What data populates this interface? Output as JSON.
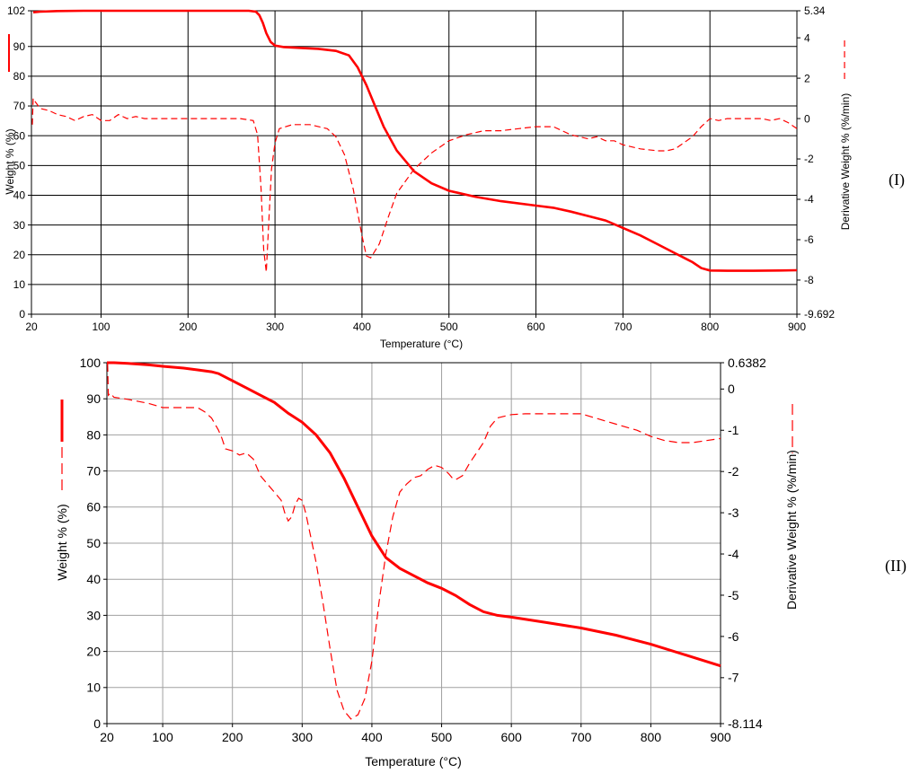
{
  "colors": {
    "curve": "#ff0000",
    "grid_top": "#000000",
    "grid_bottom": "#a0a0a0",
    "axis": "#000000"
  },
  "chart_data": [
    {
      "id": "I",
      "panel_label": "(I)",
      "type": "line",
      "xlabel": "Temperature (°C)",
      "ylabel": "Weight % (%)",
      "y2label": "Derivative Weight % (%/min)",
      "xlim": [
        20,
        900
      ],
      "ylim": [
        0,
        102
      ],
      "y2lim": [
        -9.692,
        5.34
      ],
      "x_ticks": [
        "20",
        "100",
        "200",
        "300",
        "400",
        "500",
        "600",
        "700",
        "800",
        "900"
      ],
      "y_ticks": [
        "0",
        "10",
        "20",
        "30",
        "40",
        "50",
        "60",
        "70",
        "80",
        "90",
        "102"
      ],
      "y2_ticks": [
        "-9.692",
        "-8",
        "-6",
        "-4",
        "-2",
        "0",
        "2",
        "4",
        "5.34"
      ],
      "series": [
        {
          "role": "weight",
          "axis": "left",
          "style": "solid",
          "x": [
            22,
            30,
            50,
            80,
            100,
            150,
            200,
            250,
            270,
            278,
            282,
            286,
            290,
            295,
            300,
            310,
            330,
            350,
            370,
            385,
            395,
            405,
            415,
            425,
            440,
            460,
            480,
            500,
            530,
            560,
            600,
            620,
            640,
            660,
            680,
            700,
            720,
            740,
            760,
            780,
            790,
            800,
            820,
            850,
            880,
            900
          ],
          "y": [
            101.5,
            101.7,
            101.9,
            102,
            102,
            102,
            102,
            102,
            102,
            101.7,
            100.5,
            98,
            94.5,
            91.5,
            90.3,
            89.8,
            89.5,
            89.2,
            88.5,
            87,
            83,
            77,
            70,
            63,
            55,
            48,
            44,
            41.5,
            39.5,
            38,
            36.5,
            35.8,
            34.5,
            33,
            31.5,
            29,
            26.5,
            23.5,
            20.5,
            17.5,
            15.5,
            14.7,
            14.6,
            14.6,
            14.7,
            14.8
          ]
        },
        {
          "role": "derivative",
          "axis": "right",
          "style": "dashed",
          "x": [
            21,
            22,
            25,
            30,
            40,
            50,
            60,
            70,
            80,
            90,
            100,
            110,
            120,
            130,
            140,
            150,
            200,
            260,
            275,
            280,
            284,
            287,
            290,
            293,
            296,
            300,
            305,
            320,
            340,
            360,
            370,
            380,
            390,
            400,
            405,
            410,
            420,
            430,
            440,
            460,
            480,
            500,
            520,
            540,
            560,
            580,
            600,
            620,
            640,
            660,
            670,
            680,
            690,
            700,
            720,
            740,
            750,
            760,
            770,
            780,
            790,
            800,
            810,
            820,
            840,
            860,
            870,
            880,
            890,
            900
          ],
          "y": [
            -0.3,
            1,
            0.8,
            0.5,
            0.4,
            0.2,
            0.1,
            -0.1,
            0.1,
            0.2,
            -0.1,
            -0.1,
            0.2,
            0,
            0.1,
            0,
            0,
            0,
            -0.1,
            -0.8,
            -3.5,
            -6.5,
            -7.6,
            -5,
            -2.5,
            -1.2,
            -0.5,
            -0.3,
            -0.3,
            -0.5,
            -0.9,
            -1.8,
            -3.5,
            -5.8,
            -6.8,
            -6.9,
            -6.2,
            -4.9,
            -3.7,
            -2.5,
            -1.7,
            -1.1,
            -0.8,
            -0.6,
            -0.6,
            -0.5,
            -0.4,
            -0.4,
            -0.8,
            -1,
            -0.9,
            -1.1,
            -1.1,
            -1.3,
            -1.5,
            -1.6,
            -1.6,
            -1.5,
            -1.2,
            -0.9,
            -0.4,
            0,
            -0.1,
            0,
            0,
            0,
            -0.1,
            0,
            -0.2,
            -0.5
          ]
        }
      ]
    },
    {
      "id": "II",
      "panel_label": "(II)",
      "type": "line",
      "xlabel": "Temperature (°C)",
      "ylabel": "Weight % (%)",
      "y2label": "Derivative Weight % (%/min)",
      "xlim": [
        20,
        900
      ],
      "ylim": [
        0,
        100
      ],
      "y2lim": [
        -8.114,
        0.6382
      ],
      "x_ticks": [
        "20",
        "100",
        "200",
        "300",
        "400",
        "500",
        "600",
        "700",
        "800",
        "900"
      ],
      "y_ticks": [
        "0",
        "10",
        "20",
        "30",
        "40",
        "50",
        "60",
        "70",
        "80",
        "90",
        "100"
      ],
      "y2_ticks": [
        "-8.114",
        "-7",
        "-6",
        "-5",
        "-4",
        "-3",
        "-2",
        "-1",
        "0",
        "0.6382"
      ],
      "series": [
        {
          "role": "weight",
          "axis": "left",
          "style": "solid",
          "x": [
            20,
            30,
            50,
            80,
            100,
            130,
            150,
            170,
            180,
            190,
            200,
            220,
            240,
            260,
            280,
            300,
            320,
            340,
            360,
            380,
            400,
            420,
            440,
            460,
            480,
            500,
            520,
            540,
            560,
            580,
            600,
            650,
            700,
            750,
            800,
            850,
            900
          ],
          "y": [
            100,
            100,
            99.8,
            99.4,
            99,
            98.5,
            98,
            97.5,
            97,
            96,
            95,
            93,
            91,
            89,
            86,
            83.5,
            80,
            75,
            68,
            60,
            52,
            46,
            43,
            41,
            39,
            37.5,
            35.5,
            33,
            31,
            30,
            29.5,
            28,
            26.5,
            24.5,
            22,
            19,
            16
          ]
        },
        {
          "role": "derivative",
          "axis": "right",
          "style": "dashed",
          "x": [
            20,
            21,
            22,
            25,
            30,
            50,
            80,
            100,
            150,
            160,
            170,
            180,
            185,
            190,
            200,
            210,
            220,
            230,
            240,
            250,
            260,
            270,
            275,
            280,
            285,
            290,
            295,
            300,
            305,
            310,
            320,
            330,
            340,
            350,
            360,
            370,
            380,
            390,
            400,
            410,
            420,
            430,
            440,
            450,
            460,
            470,
            480,
            490,
            500,
            510,
            515,
            520,
            525,
            530,
            540,
            550,
            560,
            570,
            580,
            600,
            620,
            640,
            660,
            680,
            700,
            720,
            740,
            760,
            780,
            800,
            820,
            840,
            860,
            880,
            900
          ],
          "y": [
            0.6,
            0.6,
            -0.15,
            -0.1,
            -0.2,
            -0.25,
            -0.35,
            -0.45,
            -0.45,
            -0.55,
            -0.7,
            -1,
            -1.2,
            -1.45,
            -1.5,
            -1.6,
            -1.55,
            -1.7,
            -2.1,
            -2.3,
            -2.5,
            -2.7,
            -3,
            -3.2,
            -3.1,
            -2.8,
            -2.65,
            -2.7,
            -3,
            -3.4,
            -4.2,
            -5.2,
            -6.3,
            -7.3,
            -7.8,
            -8,
            -7.9,
            -7.5,
            -6.6,
            -5.2,
            -4,
            -3.1,
            -2.5,
            -2.3,
            -2.15,
            -2.1,
            -1.95,
            -1.85,
            -1.9,
            -2.05,
            -2.15,
            -2.2,
            -2.15,
            -2.1,
            -1.8,
            -1.55,
            -1.3,
            -0.9,
            -0.7,
            -0.62,
            -0.6,
            -0.6,
            -0.6,
            -0.6,
            -0.6,
            -0.7,
            -0.8,
            -0.9,
            -1,
            -1.15,
            -1.25,
            -1.3,
            -1.3,
            -1.25,
            -1.2
          ]
        }
      ]
    }
  ]
}
